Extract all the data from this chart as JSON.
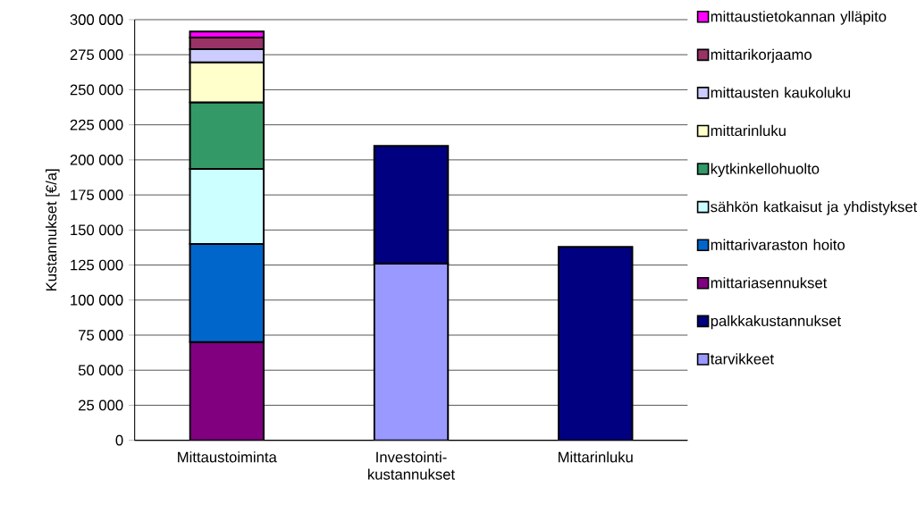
{
  "chart_data": {
    "type": "bar",
    "stacked": true,
    "categories": [
      "Mittaustoiminta",
      "Investointi-kustannukset",
      "Mittarinluku"
    ],
    "ylabel": "Kustannukset [€/a]",
    "ylim": [
      0,
      300000
    ],
    "yticks": [
      0,
      {
        "value": 25000,
        "label": "25 000"
      },
      {
        "value": 50000,
        "label": "50 000"
      },
      {
        "value": 75000,
        "label": "75 000"
      },
      {
        "value": 100000,
        "label": "100 000"
      },
      {
        "value": 125000,
        "label": "125 000"
      },
      {
        "value": 150000,
        "label": "150 000"
      },
      {
        "value": 175000,
        "label": "175 000"
      },
      {
        "value": 200000,
        "label": "200 000"
      },
      {
        "value": 225000,
        "label": "225 000"
      },
      {
        "value": 250000,
        "label": "250 000"
      },
      {
        "value": 275000,
        "label": "275 000"
      },
      {
        "value": 300000,
        "label": "300 000"
      }
    ],
    "grid": "y",
    "legend": "right",
    "series": [
      {
        "name": "tarvikkeet",
        "color": "#9999ff",
        "values": [
          null,
          126000,
          null
        ]
      },
      {
        "name": "palkkakustannukset",
        "color": "#000080",
        "values": [
          null,
          84000,
          138000
        ]
      },
      {
        "name": "mittariasennukset",
        "color": "#800080",
        "values": [
          70000,
          null,
          null
        ]
      },
      {
        "name": "mittarivaraston hoito",
        "color": "#0066cc",
        "values": [
          70000,
          null,
          null
        ]
      },
      {
        "name": "sähkön katkaisut ja yhdistykset",
        "color": "#ccffff",
        "values": [
          53500,
          null,
          null
        ]
      },
      {
        "name": "kytkinkellohuolto",
        "color": "#339966",
        "values": [
          47500,
          null,
          null
        ]
      },
      {
        "name": "mittarinluku",
        "color": "#ffffcc",
        "values": [
          28500,
          null,
          null
        ]
      },
      {
        "name": "mittausten kaukoluku",
        "color": "#ccccff",
        "values": [
          9500,
          null,
          null
        ]
      },
      {
        "name": "mittarikorjaamo",
        "color": "#993366",
        "values": [
          8300,
          null,
          null
        ]
      },
      {
        "name": "mittaustietokannan ylläpito",
        "color": "#ff00ff",
        "values": [
          4300,
          null,
          null
        ]
      }
    ]
  }
}
